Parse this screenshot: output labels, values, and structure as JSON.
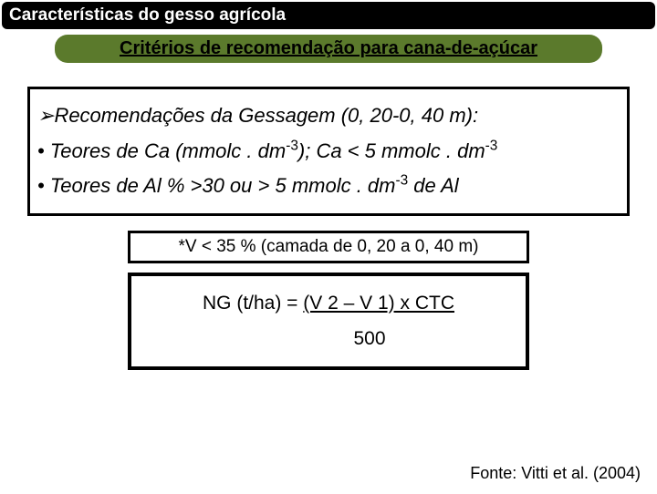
{
  "header": {
    "title": "Características do gesso agrícola"
  },
  "subtitle": {
    "text": "Critérios de recomendação para cana-de-açúcar"
  },
  "block1": {
    "line1_prefix": "➢",
    "line1": "Recomendações da Gessagem  (0, 20-0, 40 m):",
    "line2_a": "• Teores de Ca (mmolc . dm",
    "line2_b": "); Ca <  5 mmolc . dm",
    "sup": "-3",
    "line3_a": "• Teores de Al % >30 ou > 5 mmolc . dm",
    "line3_b": "  de Al"
  },
  "block2": {
    "text": "*V < 35 % (camada de 0, 20 a 0, 40 m)"
  },
  "block3": {
    "row1_a": "NG (t/ha) = ",
    "row1_u": "(V 2 – V 1) x CTC",
    "row2": "500"
  },
  "source": {
    "text": "Fonte: Vitti et al. (2004)"
  },
  "colors": {
    "header_bg": "#000000",
    "header_fg": "#ffffff",
    "sub_bg": "#5b7a2c",
    "border": "#000000",
    "page_bg": "#ffffff"
  }
}
